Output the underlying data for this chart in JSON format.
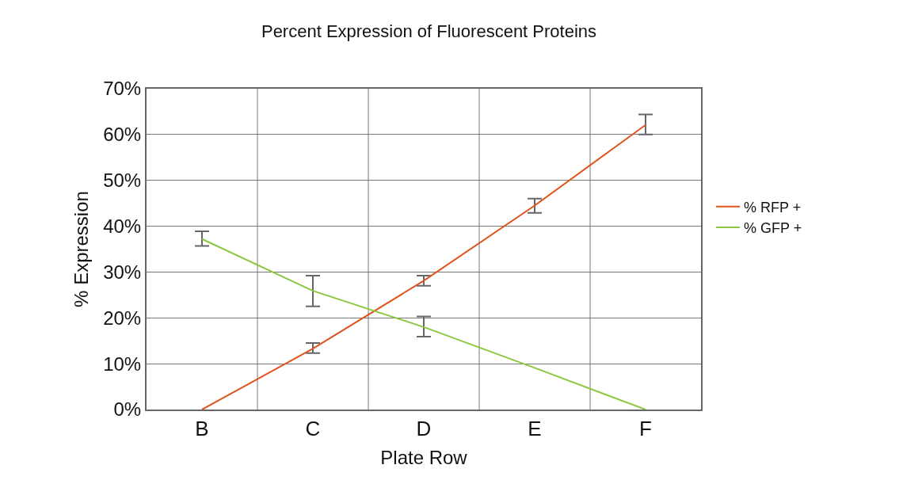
{
  "chart_data": {
    "type": "line",
    "title": "Percent Expression of Fluorescent Proteins",
    "xlabel": "Plate Row",
    "ylabel": "% Expression",
    "categories": [
      "B",
      "C",
      "D",
      "E",
      "F"
    ],
    "series": [
      {
        "name": "% RFP +",
        "color": "#e0531c",
        "values": [
          0,
          13.3,
          28.1,
          44.5,
          62.1
        ],
        "errors": [
          null,
          [
            12.3,
            14.5
          ],
          [
            27.0,
            29.2
          ],
          [
            42.9,
            46.0
          ],
          [
            60.0,
            64.4
          ]
        ]
      },
      {
        "name": "% GFP +",
        "color": "#8dc63f",
        "values": [
          37.2,
          25.9,
          18.0,
          9.1,
          0
        ],
        "errors": [
          [
            35.7,
            38.9
          ],
          [
            22.5,
            29.2
          ],
          [
            15.9,
            20.3
          ],
          null,
          null
        ]
      }
    ],
    "ylim": [
      0,
      70
    ],
    "yticks": [
      {
        "value": 0,
        "label": "0%"
      },
      {
        "value": 10,
        "label": "10%"
      },
      {
        "value": 20,
        "label": "20%"
      },
      {
        "value": 30,
        "label": "30%"
      },
      {
        "value": 40,
        "label": "40%"
      },
      {
        "value": 50,
        "label": "50%"
      },
      {
        "value": 60,
        "label": "60%"
      },
      {
        "value": 70,
        "label": "70%"
      }
    ],
    "grid": true,
    "legend": "right",
    "line_style": "solid"
  }
}
